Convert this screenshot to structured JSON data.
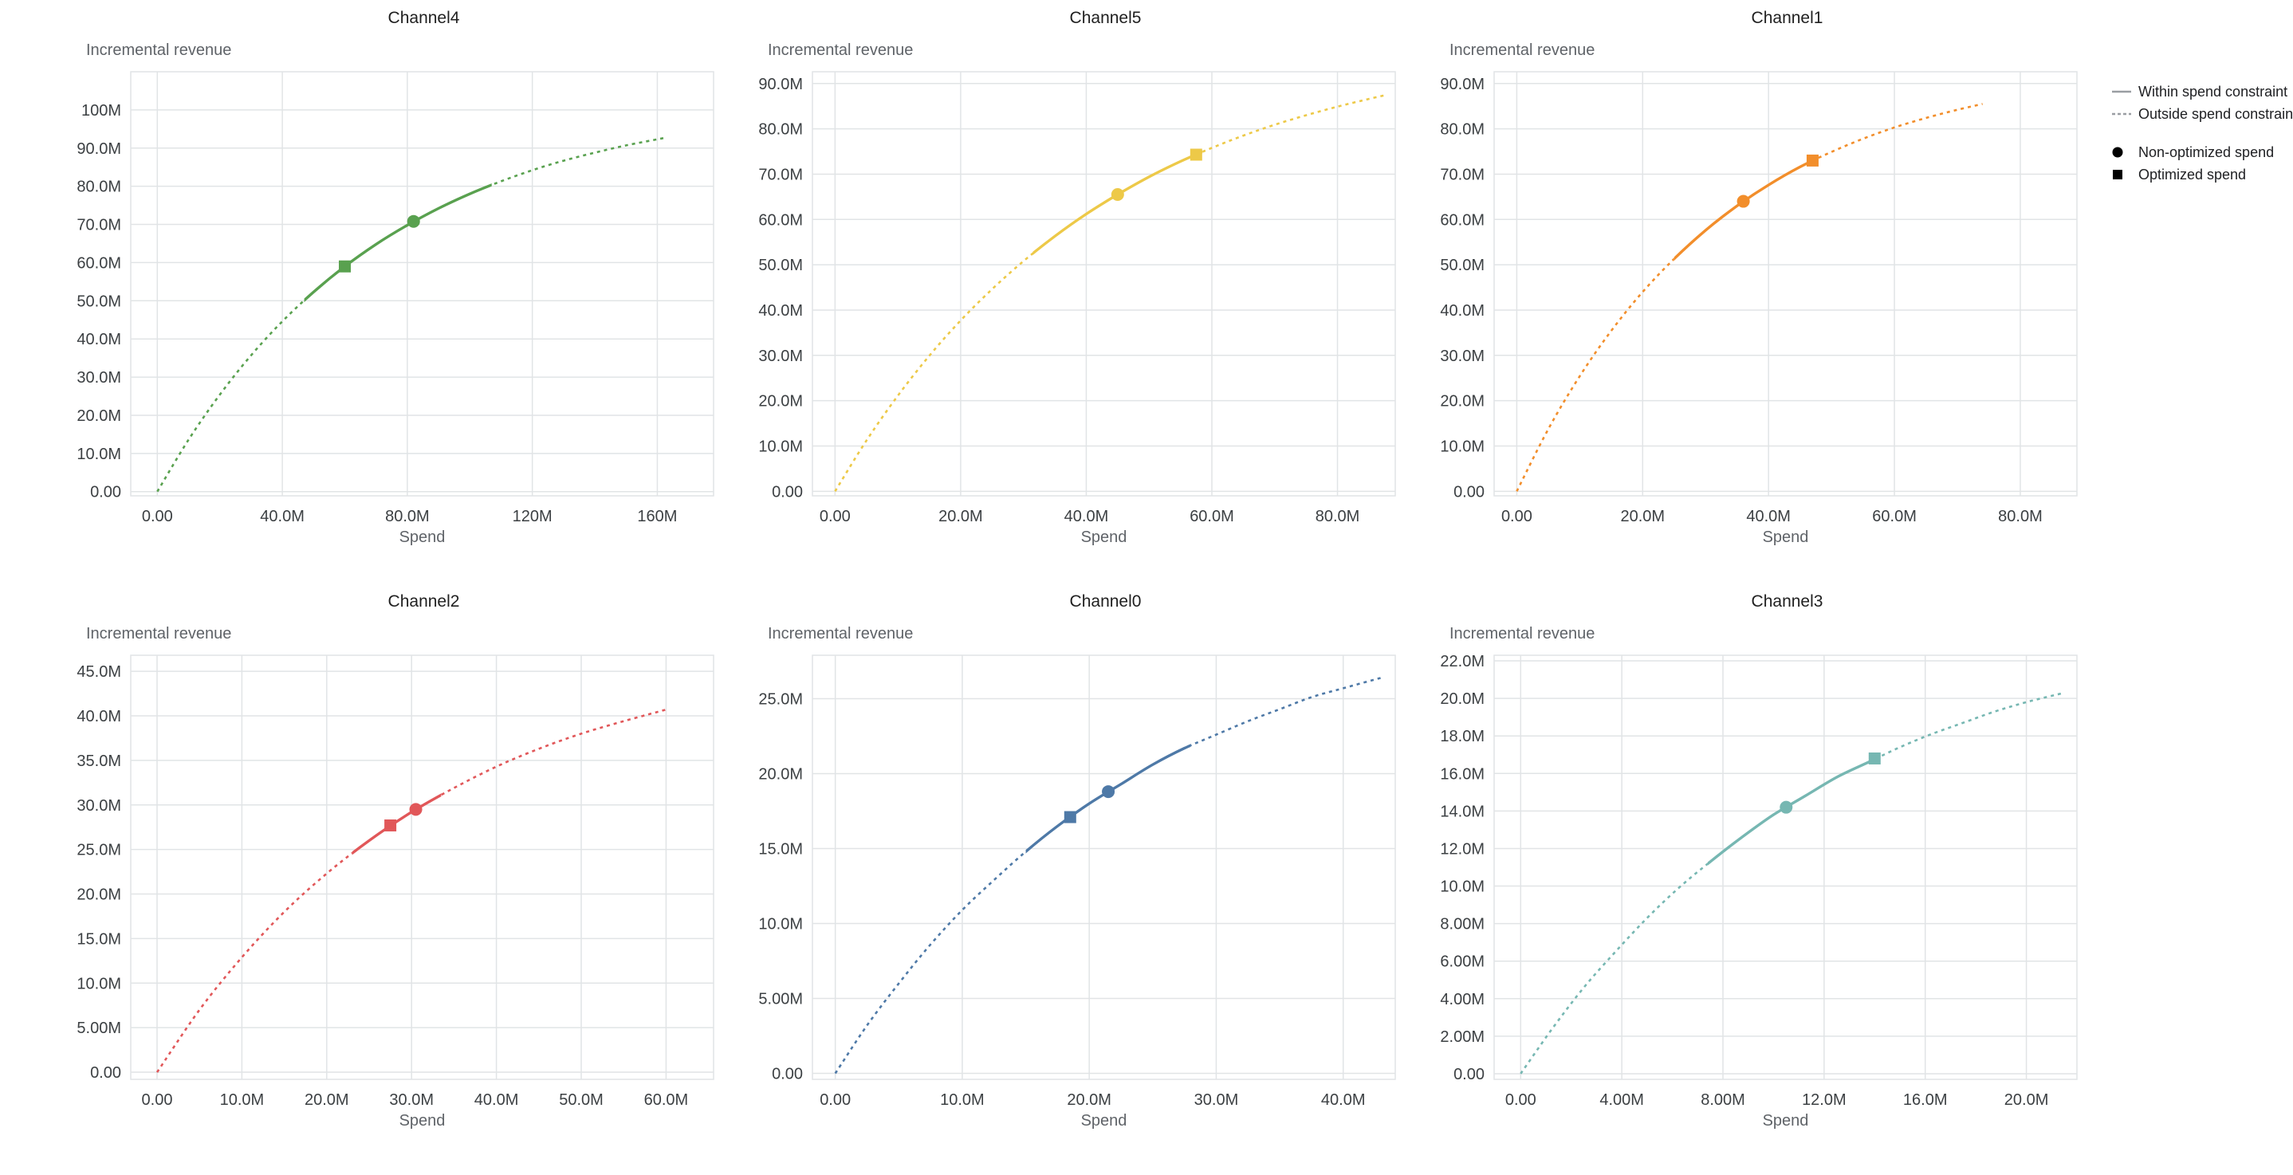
{
  "page": {
    "background": "#ffffff"
  },
  "legend": {
    "line_color": "#9a9ea3",
    "marker_color": "#000000",
    "items": [
      {
        "symbol": "solid-line",
        "label": "Within spend constraint"
      },
      {
        "symbol": "dashed-line",
        "label": "Outside spend constraint"
      },
      {
        "symbol": "circle",
        "label": "Non-optimized spend"
      },
      {
        "symbol": "square",
        "label": "Optimized spend"
      }
    ]
  },
  "chart_data": [
    {
      "type": "line",
      "title": "Channel4",
      "xlabel": "Spend",
      "ylabel": "Incremental revenue",
      "units": "millions",
      "color": "#59a14f",
      "grid": true,
      "xlim": [
        -8.5,
        178
      ],
      "ylim": [
        -1.1,
        110
      ],
      "x_ticks": {
        "values": [
          0,
          40,
          80,
          120,
          160
        ],
        "labels": [
          "0.00",
          "40.0M",
          "80.0M",
          "120M",
          "160M"
        ]
      },
      "y_ticks": {
        "values": [
          0,
          10,
          20,
          30,
          40,
          50,
          60,
          70,
          80,
          90,
          100
        ],
        "labels": [
          "0.00",
          "10.0M",
          "20.0M",
          "30.0M",
          "40.0M",
          "50.0M",
          "60.0M",
          "70.0M",
          "80.0M",
          "90.0M",
          "100M"
        ]
      },
      "curve": {
        "x": [
          0,
          10,
          20,
          30,
          40,
          50,
          60,
          70,
          80,
          90,
          100,
          110,
          120,
          130,
          140,
          150,
          160,
          163
        ],
        "y": [
          0,
          13.6,
          25.4,
          35.7,
          44.6,
          52.3,
          59.0,
          64.8,
          69.8,
          74.2,
          78.0,
          81.3,
          84.2,
          86.7,
          88.8,
          90.7,
          92.3,
          92.8
        ]
      },
      "solid_range": [
        47,
        107
      ],
      "markers": {
        "optimized": {
          "x": 60,
          "y": 59.0
        },
        "non_optimized": {
          "x": 82,
          "y": 70.8
        }
      }
    },
    {
      "type": "line",
      "title": "Channel5",
      "xlabel": "Spend",
      "ylabel": "Incremental revenue",
      "units": "millions",
      "color": "#edc948",
      "grid": true,
      "xlim": [
        -3.6,
        89.2
      ],
      "ylim": [
        -1,
        92.6
      ],
      "x_ticks": {
        "values": [
          0,
          20,
          40,
          60,
          80
        ],
        "labels": [
          "0.00",
          "20.0M",
          "40.0M",
          "60.0M",
          "80.0M"
        ]
      },
      "y_ticks": {
        "values": [
          0,
          10,
          20,
          30,
          40,
          50,
          60,
          70,
          80,
          90
        ],
        "labels": [
          "0.00",
          "10.0M",
          "20.0M",
          "30.0M",
          "40.0M",
          "50.0M",
          "60.0M",
          "70.0M",
          "80.0M",
          "90.0M"
        ]
      },
      "curve": {
        "x": [
          0,
          5,
          10,
          15,
          20,
          25,
          30,
          35,
          40,
          45,
          50,
          55,
          60,
          65,
          70,
          75,
          80,
          85,
          87.5
        ],
        "y": [
          0,
          11.2,
          21.1,
          29.9,
          37.7,
          44.6,
          50.8,
          56.3,
          61.2,
          65.5,
          69.4,
          72.8,
          75.8,
          78.5,
          80.9,
          83.0,
          84.9,
          86.6,
          87.4
        ]
      },
      "solid_range": [
        31.5,
        58.5
      ],
      "markers": {
        "non_optimized": {
          "x": 45,
          "y": 65.5
        },
        "optimized": {
          "x": 57.5,
          "y": 74.3
        }
      }
    },
    {
      "type": "line",
      "title": "Channel1",
      "xlabel": "Spend",
      "ylabel": "Incremental revenue",
      "units": "millions",
      "color": "#f28e2b",
      "grid": true,
      "xlim": [
        -3.6,
        89
      ],
      "ylim": [
        -1,
        92.6
      ],
      "x_ticks": {
        "values": [
          0,
          20,
          40,
          60,
          80
        ],
        "labels": [
          "0.00",
          "20.0M",
          "40.0M",
          "60.0M",
          "80.0M"
        ]
      },
      "y_ticks": {
        "values": [
          0,
          10,
          20,
          30,
          40,
          50,
          60,
          70,
          80,
          90
        ],
        "labels": [
          "0.00",
          "10.0M",
          "20.0M",
          "30.0M",
          "40.0M",
          "50.0M",
          "60.0M",
          "70.0M",
          "80.0M",
          "90.0M"
        ]
      },
      "curve": {
        "x": [
          0,
          5,
          10,
          15,
          20,
          25,
          30,
          35,
          40,
          45,
          50,
          55,
          60,
          65,
          70,
          74
        ],
        "y": [
          0,
          13.7,
          25.4,
          35.4,
          44.0,
          51.3,
          57.6,
          63.0,
          67.6,
          71.6,
          74.9,
          77.8,
          80.3,
          82.4,
          84.2,
          85.5
        ]
      },
      "solid_range": [
        25,
        47.5
      ],
      "markers": {
        "non_optimized": {
          "x": 36,
          "y": 64.0
        },
        "optimized": {
          "x": 47,
          "y": 73.0
        }
      }
    },
    {
      "type": "line",
      "title": "Channel2",
      "xlabel": "Spend",
      "ylabel": "Incremental revenue",
      "units": "millions",
      "color": "#e15759",
      "grid": true,
      "xlim": [
        -3.1,
        65.6
      ],
      "ylim": [
        -0.8,
        46.8
      ],
      "x_ticks": {
        "values": [
          0,
          10,
          20,
          30,
          40,
          50,
          60
        ],
        "labels": [
          "0.00",
          "10.0M",
          "20.0M",
          "30.0M",
          "40.0M",
          "50.0M",
          "60.0M"
        ]
      },
      "y_ticks": {
        "values": [
          0,
          5,
          10,
          15,
          20,
          25,
          30,
          35,
          40,
          45
        ],
        "labels": [
          "0.00",
          "5.00M",
          "10.0M",
          "15.0M",
          "20.0M",
          "25.0M",
          "30.0M",
          "35.0M",
          "40.0M",
          "45.0M"
        ]
      },
      "curve": {
        "x": [
          0,
          5,
          10,
          15,
          20,
          25,
          30,
          35,
          40,
          45,
          50,
          55,
          60
        ],
        "y": [
          0,
          7.0,
          12.9,
          18.0,
          22.3,
          26.0,
          29.2,
          31.9,
          34.3,
          36.3,
          38.0,
          39.4,
          40.7
        ]
      },
      "solid_range": [
        23,
        33.5
      ],
      "markers": {
        "optimized": {
          "x": 27.5,
          "y": 27.7
        },
        "non_optimized": {
          "x": 30.5,
          "y": 29.5
        }
      }
    },
    {
      "type": "line",
      "title": "Channel0",
      "xlabel": "Spend",
      "ylabel": "Incremental revenue",
      "units": "millions",
      "color": "#4e79a7",
      "grid": true,
      "xlim": [
        -1.8,
        44.1
      ],
      "ylim": [
        -0.4,
        27.9
      ],
      "x_ticks": {
        "values": [
          0,
          10,
          20,
          30,
          40
        ],
        "labels": [
          "0.00",
          "10.0M",
          "20.0M",
          "30.0M",
          "40.0M"
        ]
      },
      "y_ticks": {
        "values": [
          0,
          5,
          10,
          15,
          20,
          25
        ],
        "labels": [
          "0.00",
          "5.00M",
          "10.0M",
          "15.0M",
          "20.0M",
          "25.0M"
        ]
      },
      "curve": {
        "x": [
          0,
          2.5,
          5,
          7.5,
          10,
          12.5,
          15,
          17.5,
          20,
          22.5,
          25,
          27.5,
          30,
          32.5,
          35,
          37.5,
          40,
          43
        ],
        "y": [
          0,
          3.2,
          6.0,
          8.6,
          10.9,
          12.9,
          14.8,
          16.5,
          18.0,
          19.3,
          20.6,
          21.7,
          22.6,
          23.5,
          24.3,
          25.1,
          25.7,
          26.4
        ]
      },
      "solid_range": [
        15,
        28
      ],
      "markers": {
        "optimized": {
          "x": 18.5,
          "y": 17.1
        },
        "non_optimized": {
          "x": 21.5,
          "y": 18.8
        }
      }
    },
    {
      "type": "line",
      "title": "Channel3",
      "xlabel": "Spend",
      "ylabel": "Incremental revenue",
      "units": "millions",
      "color": "#76b7b2",
      "grid": true,
      "xlim": [
        -1.05,
        22
      ],
      "ylim": [
        -0.3,
        22.3
      ],
      "x_ticks": {
        "values": [
          0,
          4,
          8,
          12,
          16,
          20
        ],
        "labels": [
          "0.00",
          "4.00M",
          "8.00M",
          "12.0M",
          "16.0M",
          "20.0M"
        ]
      },
      "y_ticks": {
        "values": [
          0,
          2,
          4,
          6,
          8,
          10,
          12,
          14,
          16,
          18,
          20,
          22
        ],
        "labels": [
          "0.00",
          "2.00M",
          "4.00M",
          "6.00M",
          "8.00M",
          "10.0M",
          "12.0M",
          "14.0M",
          "16.0M",
          "18.0M",
          "20.0M",
          "22.0M"
        ]
      },
      "curve": {
        "x": [
          0,
          1.25,
          2.5,
          3.75,
          5,
          6.25,
          7.5,
          8.75,
          10,
          11.25,
          12.5,
          13.75,
          15,
          16.25,
          17.5,
          18.75,
          20,
          21.5
        ],
        "y": [
          0,
          2.4,
          4.6,
          6.5,
          8.3,
          9.9,
          11.3,
          12.6,
          13.8,
          14.8,
          15.8,
          16.6,
          17.4,
          18.1,
          18.7,
          19.3,
          19.8,
          20.3
        ]
      },
      "solid_range": [
        7.4,
        14.2
      ],
      "markers": {
        "non_optimized": {
          "x": 10.5,
          "y": 14.2
        },
        "optimized": {
          "x": 14,
          "y": 16.8
        }
      }
    }
  ]
}
